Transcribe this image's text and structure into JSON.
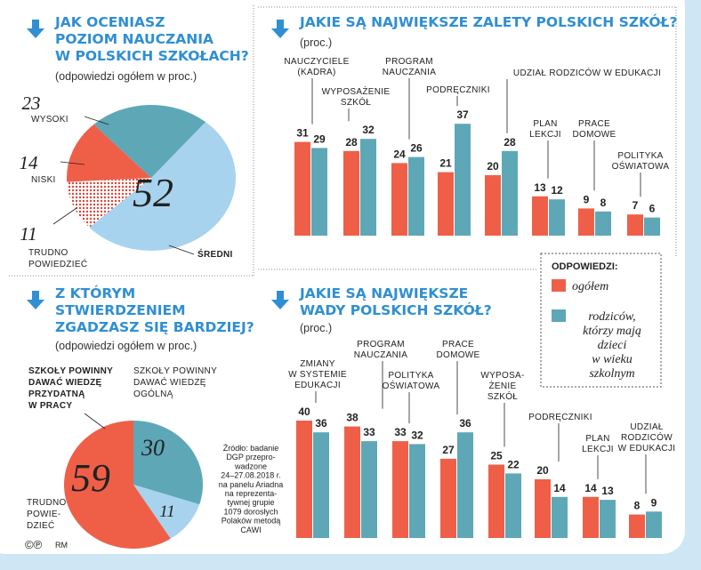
{
  "chart_data": [
    {
      "type": "pie",
      "title": "JAK OCENIASZ\nPOZIOM NAUCZANIA\nW POLSKICH SZKOŁACH?",
      "subtitle": "(odpowiedzi ogółem w proc.)",
      "categories": [
        "WYSOKI",
        "NISKI",
        "TRUDNO\nPOWIEDZIEĆ",
        "ŚREDNI"
      ],
      "values": [
        23,
        14,
        11,
        52
      ],
      "colors": [
        "#5ea7b7",
        "#ef5f48",
        "#ef5f48",
        "#a7d3ef"
      ],
      "patterns": [
        "solid",
        "solid",
        "dots",
        "solid"
      ]
    },
    {
      "type": "bar",
      "title": "JAKIE SĄ NAJWIĘKSZE ZALETY POLSKICH SZKÓŁ?",
      "subtitle": "(proc.)",
      "categories": [
        "NAUCZYCIELE\n(KADRA)",
        "WYPOSAŻENIE\nSZKÓŁ",
        "PROGRAM\nNAUCZANIA",
        "PODRĘCZNIKI",
        "UDZIAŁ RODZICÓW W EDUKACJI",
        "PLAN\nLEKCJI",
        "PRACE\nDOMOWE",
        "POLITYKA\nOŚWIATOWA"
      ],
      "legend_title": "ODPOWIEDZI:",
      "series": [
        {
          "name": "ogółem",
          "color": "#ef5f48",
          "values": [
            31,
            28,
            24,
            21,
            20,
            13,
            9,
            7
          ]
        },
        {
          "name": "rodziców,\nktórzy mają\ndzieci\nw wieku\nszkolnym",
          "color": "#5ea7b7",
          "values": [
            29,
            32,
            26,
            37,
            28,
            12,
            8,
            6
          ]
        }
      ]
    },
    {
      "type": "pie",
      "title": "Z KTÓRYM\nSTWIERDZENIEM\nZGADZASZ SIĘ BARDZIEJ?",
      "subtitle": "(odpowiedzi ogółem w proc.)",
      "categories": [
        "SZKOŁY POWINNY\nDAWAĆ WIEDZĘ\nPRZYDATNĄ\nW PRACY",
        "SZKOŁY POWINNY\nDAWAĆ WIEDZĘ\nOGÓLNĄ",
        "TRUDNO\nPOWIE-\nDZIEĆ"
      ],
      "values": [
        59,
        30,
        11
      ],
      "colors": [
        "#ef5f48",
        "#5ea7b7",
        "#a7d3ef"
      ],
      "patterns": [
        "solid",
        "solid",
        "solid"
      ]
    },
    {
      "type": "bar",
      "title": "JAKIE SĄ NAJWIĘKSZE\nWADY POLSKICH SZKÓŁ?",
      "subtitle": "(proc.)",
      "categories": [
        "ZMIANY\nW SYSTEMIE\nEDUKACJI",
        "PROGRAM\nNAUCZANIA",
        "POLITYKA\nOŚWIATOWA",
        "PRACE\nDOMOWE",
        "WYPOSA-\nŻENIE\nSZKÓŁ",
        "PODRĘCZNIKI",
        "PLAN\nLEKCJI",
        "UDZIAŁ\nRODZICÓW\nW EDUKACJI"
      ],
      "series": [
        {
          "name": "ogółem",
          "color": "#ef5f48",
          "values": [
            40,
            38,
            33,
            27,
            25,
            20,
            14,
            8
          ]
        },
        {
          "name": "rodziców, którzy mają dzieci w wieku szkolnym",
          "color": "#5ea7b7",
          "values": [
            36,
            33,
            32,
            36,
            22,
            14,
            13,
            9
          ]
        }
      ]
    }
  ],
  "source": "Źródło: badanie\nDGP przepro-\nwadzone\n24–27.08.2018 r.\nna panelu Ariadna\nna reprezenta-\ntywnej grupie\n1079 dorosłych\nPolaków metodą\nCAWI",
  "copyright": "©℗",
  "credit": "RM"
}
